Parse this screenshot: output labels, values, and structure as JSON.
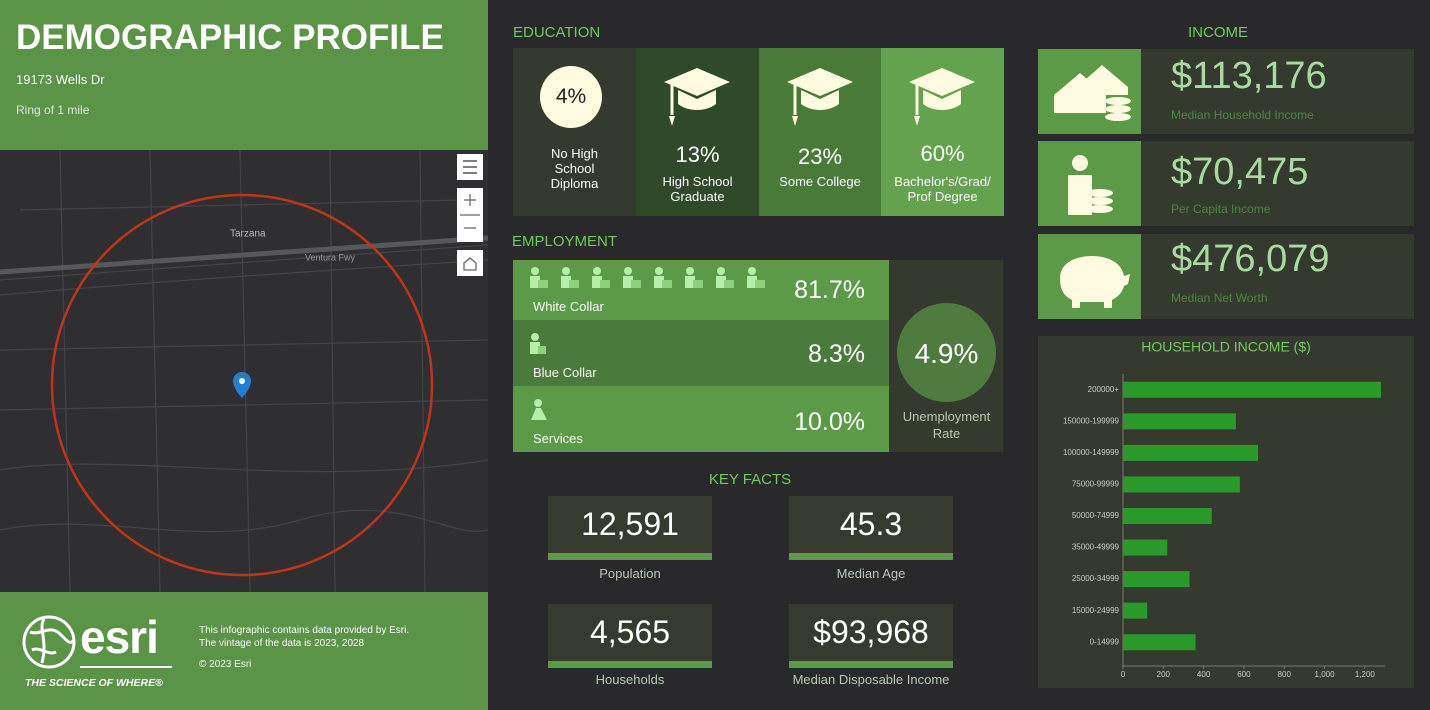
{
  "header": {
    "title": "DEMOGRAPHIC PROFILE",
    "address": "19173 Wells Dr",
    "ring": "Ring of 1 mile"
  },
  "map": {
    "labels": [
      "Tarzana",
      "Ventura Fwy"
    ]
  },
  "footer": {
    "logo": "esri",
    "tagline": "THE SCIENCE OF WHERE®",
    "lines": [
      "This infographic contains data provided by Esri.",
      "The vintage of the data is 2023, 2028",
      "© 2023 Esri"
    ]
  },
  "education": {
    "title": "EDUCATION",
    "items": [
      {
        "value": "4%",
        "label": "No High School Diploma"
      },
      {
        "value": "13%",
        "label": "High School Graduate"
      },
      {
        "value": "23%",
        "label": "Some College"
      },
      {
        "value": "60%",
        "label": "Bachelor's/Grad/Prof Degree"
      }
    ]
  },
  "employment": {
    "title": "EMPLOYMENT",
    "rows": [
      {
        "label": "White Collar",
        "value": "81.7%"
      },
      {
        "label": "Blue Collar",
        "value": "8.3%"
      },
      {
        "label": "Services",
        "value": "10.0%"
      }
    ],
    "unemployment": {
      "value": "4.9%",
      "label": "Unemployment Rate"
    }
  },
  "key_facts": {
    "title": "KEY FACTS",
    "items": [
      {
        "value": "12,591",
        "label": "Population"
      },
      {
        "value": "45.3",
        "label": "Median Age"
      },
      {
        "value": "4,565",
        "label": "Households"
      },
      {
        "value": "$93,968",
        "label": "Median Disposable Income"
      }
    ]
  },
  "income": {
    "title": "INCOME",
    "items": [
      {
        "value": "$113,176",
        "label": "Median Household Income"
      },
      {
        "value": "$70,475",
        "label": "Per Capita Income"
      },
      {
        "value": "$476,079",
        "label": "Median Net Worth"
      }
    ]
  },
  "chart_data": {
    "type": "bar",
    "orientation": "horizontal",
    "title": "HOUSEHOLD INCOME ($)",
    "categories": [
      "200000+",
      "150000-199999",
      "100000-149999",
      "75000-99999",
      "50000-74999",
      "35000-49999",
      "25000-34999",
      "15000-24999",
      "0-14999"
    ],
    "values": [
      1280,
      560,
      670,
      580,
      440,
      220,
      330,
      120,
      360
    ],
    "color": "#2a9a2a",
    "xlim": [
      0,
      1300
    ],
    "xticks": [
      0,
      200,
      400,
      600,
      800,
      {
        "value": 1000,
        "label": "1,000"
      },
      {
        "value": 1200,
        "label": "1,200"
      }
    ]
  }
}
